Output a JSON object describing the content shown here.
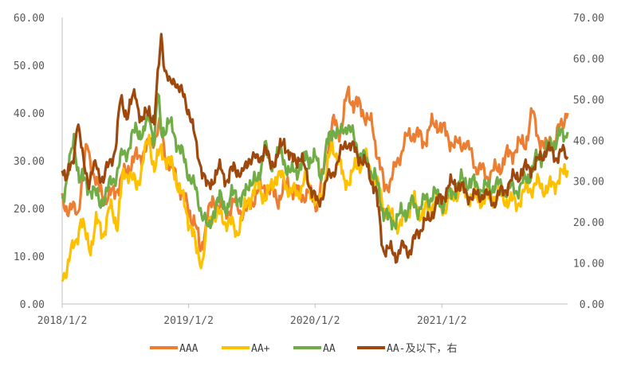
{
  "chart_data": {
    "type": "line",
    "title": "",
    "xlabel": "",
    "ylabel": "",
    "x_ticks": [
      "2018/1/2",
      "2019/1/2",
      "2020/1/2",
      "2021/1/2"
    ],
    "x_range": [
      "2018-01-02",
      "2021-12-31"
    ],
    "y_left": {
      "min": 0,
      "max": 60,
      "ticks": [
        "0.00",
        "10.00",
        "20.00",
        "30.00",
        "40.00",
        "50.00",
        "60.00"
      ]
    },
    "y_right": {
      "min": 0,
      "max": 70,
      "ticks": [
        "0.00",
        "10.00",
        "20.00",
        "30.00",
        "40.00",
        "50.00",
        "60.00",
        "70.00"
      ]
    },
    "legend_position": "bottom",
    "grid": false,
    "series": [
      {
        "name": "AAA",
        "axis": "left",
        "color": "#ED7D31",
        "points": [
          [
            "2018-01-02",
            21
          ],
          [
            "2018-02-15",
            19
          ],
          [
            "2018-03-15",
            33
          ],
          [
            "2018-04-15",
            24
          ],
          [
            "2018-05-15",
            22
          ],
          [
            "2018-06-15",
            25
          ],
          [
            "2018-07-15",
            29
          ],
          [
            "2018-08-10",
            31
          ],
          [
            "2018-09-10",
            33
          ],
          [
            "2018-10-10",
            37
          ],
          [
            "2018-11-01",
            30
          ],
          [
            "2018-12-01",
            26
          ],
          [
            "2018-12-25",
            21
          ],
          [
            "2019-01-20",
            17
          ],
          [
            "2019-02-05",
            11
          ],
          [
            "2019-02-25",
            18
          ],
          [
            "2019-03-15",
            22
          ],
          [
            "2019-04-15",
            19
          ],
          [
            "2019-05-15",
            21
          ],
          [
            "2019-06-15",
            19
          ],
          [
            "2019-07-15",
            23
          ],
          [
            "2019-08-15",
            25
          ],
          [
            "2019-09-15",
            22
          ],
          [
            "2019-10-15",
            25
          ],
          [
            "2019-11-15",
            23
          ],
          [
            "2019-12-15",
            23
          ],
          [
            "2020-01-10",
            21
          ],
          [
            "2020-02-05",
            32
          ],
          [
            "2020-02-25",
            38
          ],
          [
            "2020-03-15",
            36
          ],
          [
            "2020-04-05",
            44
          ],
          [
            "2020-04-25",
            42
          ],
          [
            "2020-05-15",
            41
          ],
          [
            "2020-06-15",
            37
          ],
          [
            "2020-07-05",
            30
          ],
          [
            "2020-07-20",
            24
          ],
          [
            "2020-08-05",
            26
          ],
          [
            "2020-08-25",
            29
          ],
          [
            "2020-09-15",
            34
          ],
          [
            "2020-10-15",
            36
          ],
          [
            "2020-11-10",
            34
          ],
          [
            "2020-12-01",
            37
          ],
          [
            "2020-12-20",
            38
          ],
          [
            "2021-01-10",
            36
          ],
          [
            "2021-02-10",
            33
          ],
          [
            "2021-03-10",
            34
          ],
          [
            "2021-04-10",
            29
          ],
          [
            "2021-05-10",
            27
          ],
          [
            "2021-06-10",
            28
          ],
          [
            "2021-07-10",
            31
          ],
          [
            "2021-08-10",
            33
          ],
          [
            "2021-09-01",
            34
          ],
          [
            "2021-09-20",
            40
          ],
          [
            "2021-10-05",
            36
          ],
          [
            "2021-10-25",
            32
          ],
          [
            "2021-11-10",
            35
          ],
          [
            "2021-11-25",
            33
          ],
          [
            "2021-12-10",
            38
          ],
          [
            "2021-12-31",
            40
          ]
        ]
      },
      {
        "name": "AA+",
        "axis": "left",
        "color": "#FFC000",
        "points": [
          [
            "2018-01-02",
            5
          ],
          [
            "2018-01-25",
            10
          ],
          [
            "2018-02-10",
            13
          ],
          [
            "2018-02-25",
            18
          ],
          [
            "2018-03-10",
            14
          ],
          [
            "2018-03-25",
            12
          ],
          [
            "2018-04-10",
            17
          ],
          [
            "2018-05-01",
            15
          ],
          [
            "2018-05-20",
            20
          ],
          [
            "2018-06-10",
            17
          ],
          [
            "2018-06-25",
            26
          ],
          [
            "2018-07-15",
            28
          ],
          [
            "2018-08-05",
            24
          ],
          [
            "2018-08-25",
            31
          ],
          [
            "2018-09-10",
            34
          ],
          [
            "2018-09-25",
            29
          ],
          [
            "2018-10-15",
            32
          ],
          [
            "2018-11-05",
            30
          ],
          [
            "2018-11-25",
            27
          ],
          [
            "2018-12-15",
            22
          ],
          [
            "2019-01-10",
            16
          ],
          [
            "2019-01-25",
            11
          ],
          [
            "2019-02-10",
            9
          ],
          [
            "2019-02-25",
            16
          ],
          [
            "2019-03-15",
            19
          ],
          [
            "2019-04-10",
            18
          ],
          [
            "2019-05-01",
            17
          ],
          [
            "2019-05-20",
            15
          ],
          [
            "2019-06-10",
            19
          ],
          [
            "2019-06-25",
            22
          ],
          [
            "2019-07-20",
            25
          ],
          [
            "2019-08-15",
            22
          ],
          [
            "2019-09-10",
            27
          ],
          [
            "2019-10-05",
            26
          ],
          [
            "2019-10-25",
            23
          ],
          [
            "2019-11-20",
            24
          ],
          [
            "2019-12-10",
            26
          ],
          [
            "2020-01-10",
            20
          ],
          [
            "2020-02-05",
            28
          ],
          [
            "2020-02-20",
            33
          ],
          [
            "2020-03-10",
            31
          ],
          [
            "2020-03-25",
            25
          ],
          [
            "2020-04-15",
            27
          ],
          [
            "2020-05-05",
            29
          ],
          [
            "2020-05-25",
            31
          ],
          [
            "2020-06-15",
            27
          ],
          [
            "2020-07-05",
            24
          ],
          [
            "2020-07-25",
            19
          ],
          [
            "2020-08-15",
            18
          ],
          [
            "2020-09-05",
            16
          ],
          [
            "2020-09-25",
            20
          ],
          [
            "2020-10-15",
            21
          ],
          [
            "2020-11-05",
            19
          ],
          [
            "2020-11-25",
            20
          ],
          [
            "2020-12-15",
            22
          ],
          [
            "2021-01-10",
            20
          ],
          [
            "2021-02-05",
            23
          ],
          [
            "2021-03-05",
            24
          ],
          [
            "2021-04-05",
            22
          ],
          [
            "2021-05-05",
            22
          ],
          [
            "2021-06-05",
            23
          ],
          [
            "2021-07-05",
            22
          ],
          [
            "2021-08-05",
            21
          ],
          [
            "2021-09-05",
            24
          ],
          [
            "2021-10-05",
            25
          ],
          [
            "2021-11-05",
            24
          ],
          [
            "2021-12-01",
            26
          ],
          [
            "2021-12-31",
            28
          ]
        ]
      },
      {
        "name": "AA",
        "axis": "left",
        "color": "#70AD47",
        "points": [
          [
            "2018-01-02",
            22
          ],
          [
            "2018-01-20",
            28
          ],
          [
            "2018-02-05",
            34
          ],
          [
            "2018-02-20",
            27
          ],
          [
            "2018-03-10",
            25
          ],
          [
            "2018-04-01",
            24
          ],
          [
            "2018-04-20",
            21
          ],
          [
            "2018-05-15",
            24
          ],
          [
            "2018-06-05",
            27
          ],
          [
            "2018-06-25",
            31
          ],
          [
            "2018-07-15",
            33
          ],
          [
            "2018-08-05",
            37
          ],
          [
            "2018-08-25",
            35
          ],
          [
            "2018-09-10",
            40
          ],
          [
            "2018-09-25",
            34
          ],
          [
            "2018-10-05",
            44
          ],
          [
            "2018-10-15",
            36
          ],
          [
            "2018-11-05",
            38
          ],
          [
            "2018-11-25",
            35
          ],
          [
            "2018-12-15",
            31
          ],
          [
            "2019-01-10",
            26
          ],
          [
            "2019-01-30",
            22
          ],
          [
            "2019-02-15",
            18
          ],
          [
            "2019-02-28",
            15
          ],
          [
            "2019-03-15",
            20
          ],
          [
            "2019-04-05",
            22
          ],
          [
            "2019-04-25",
            20
          ],
          [
            "2019-05-15",
            24
          ],
          [
            "2019-06-05",
            21
          ],
          [
            "2019-06-25",
            26
          ],
          [
            "2019-07-20",
            25
          ],
          [
            "2019-08-10",
            34
          ],
          [
            "2019-08-25",
            28
          ],
          [
            "2019-09-15",
            32
          ],
          [
            "2019-10-05",
            30
          ],
          [
            "2019-10-25",
            27
          ],
          [
            "2019-11-20",
            29
          ],
          [
            "2019-12-10",
            31
          ],
          [
            "2020-01-05",
            30
          ],
          [
            "2020-01-20",
            27
          ],
          [
            "2020-02-05",
            33
          ],
          [
            "2020-02-25",
            37
          ],
          [
            "2020-03-15",
            35
          ],
          [
            "2020-04-05",
            38
          ],
          [
            "2020-04-25",
            34
          ],
          [
            "2020-05-15",
            31
          ],
          [
            "2020-06-05",
            29
          ],
          [
            "2020-06-25",
            26
          ],
          [
            "2020-07-15",
            20
          ],
          [
            "2020-08-05",
            17
          ],
          [
            "2020-08-25",
            18
          ],
          [
            "2020-09-15",
            19
          ],
          [
            "2020-10-05",
            21
          ],
          [
            "2020-10-25",
            20
          ],
          [
            "2020-11-20",
            22
          ],
          [
            "2020-12-10",
            23
          ],
          [
            "2021-01-05",
            21
          ],
          [
            "2021-02-05",
            24
          ],
          [
            "2021-03-05",
            26
          ],
          [
            "2021-04-05",
            25
          ],
          [
            "2021-05-05",
            24
          ],
          [
            "2021-06-05",
            25
          ],
          [
            "2021-07-05",
            24
          ],
          [
            "2021-08-05",
            24
          ],
          [
            "2021-09-05",
            26
          ],
          [
            "2021-10-01",
            30
          ],
          [
            "2021-10-25",
            32
          ],
          [
            "2021-11-15",
            33
          ],
          [
            "2021-12-05",
            35
          ],
          [
            "2021-12-31",
            36
          ]
        ]
      },
      {
        "name": "AA-及以下，右",
        "axis": "right",
        "color": "#9E480E",
        "points": [
          [
            "2018-01-02",
            34
          ],
          [
            "2018-01-15",
            31
          ],
          [
            "2018-02-01",
            34
          ],
          [
            "2018-02-15",
            45
          ],
          [
            "2018-03-01",
            36
          ],
          [
            "2018-03-20",
            30
          ],
          [
            "2018-04-10",
            34
          ],
          [
            "2018-05-01",
            30
          ],
          [
            "2018-05-20",
            35
          ],
          [
            "2018-06-05",
            38
          ],
          [
            "2018-06-20",
            50
          ],
          [
            "2018-07-10",
            46
          ],
          [
            "2018-08-01",
            52
          ],
          [
            "2018-08-20",
            44
          ],
          [
            "2018-09-10",
            48
          ],
          [
            "2018-09-25",
            44
          ],
          [
            "2018-10-05",
            55
          ],
          [
            "2018-10-15",
            66
          ],
          [
            "2018-10-25",
            58
          ],
          [
            "2018-11-10",
            53
          ],
          [
            "2018-11-25",
            55
          ],
          [
            "2018-12-15",
            51
          ],
          [
            "2019-01-05",
            47
          ],
          [
            "2019-01-25",
            38
          ],
          [
            "2019-02-10",
            33
          ],
          [
            "2019-02-25",
            28
          ],
          [
            "2019-03-15",
            31
          ],
          [
            "2019-04-05",
            33
          ],
          [
            "2019-04-25",
            30
          ],
          [
            "2019-05-15",
            34
          ],
          [
            "2019-06-05",
            31
          ],
          [
            "2019-06-25",
            36
          ],
          [
            "2019-07-20",
            35
          ],
          [
            "2019-08-10",
            38
          ],
          [
            "2019-08-25",
            34
          ],
          [
            "2019-09-15",
            36
          ],
          [
            "2019-10-05",
            40
          ],
          [
            "2019-10-25",
            35
          ],
          [
            "2019-11-20",
            36
          ],
          [
            "2019-12-15",
            30
          ],
          [
            "2020-01-10",
            24
          ],
          [
            "2020-02-05",
            30
          ],
          [
            "2020-02-20",
            32
          ],
          [
            "2020-03-10",
            35
          ],
          [
            "2020-04-01",
            40
          ],
          [
            "2020-04-20",
            38
          ],
          [
            "2020-05-10",
            36
          ],
          [
            "2020-06-01",
            33
          ],
          [
            "2020-06-25",
            28
          ],
          [
            "2020-07-15",
            14
          ],
          [
            "2020-08-05",
            13
          ],
          [
            "2020-08-25",
            12
          ],
          [
            "2020-09-15",
            14
          ],
          [
            "2020-10-05",
            13
          ],
          [
            "2020-10-25",
            18
          ],
          [
            "2020-11-20",
            20
          ],
          [
            "2020-12-15",
            24
          ],
          [
            "2021-01-10",
            27
          ],
          [
            "2021-02-05",
            30
          ],
          [
            "2021-03-01",
            28
          ],
          [
            "2021-04-01",
            26
          ],
          [
            "2021-05-01",
            27
          ],
          [
            "2021-06-01",
            25
          ],
          [
            "2021-07-01",
            28
          ],
          [
            "2021-08-01",
            31
          ],
          [
            "2021-09-01",
            33
          ],
          [
            "2021-10-01",
            34
          ],
          [
            "2021-11-01",
            38
          ],
          [
            "2021-11-25",
            36
          ],
          [
            "2021-12-15",
            37
          ],
          [
            "2021-12-31",
            36
          ]
        ]
      }
    ]
  }
}
